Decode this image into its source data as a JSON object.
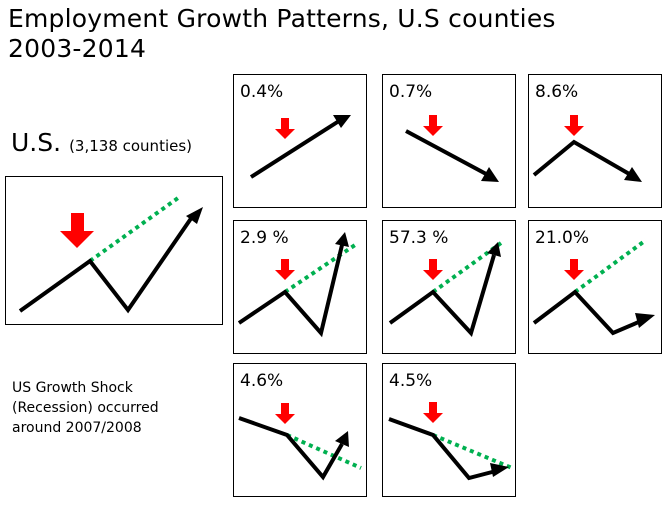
{
  "title_line1": "Employment Growth Patterns, U.S counties",
  "title_line2": "2003-2014",
  "us_label": "U.S.",
  "us_counties": "(3,138 counties)",
  "note_lines": [
    "US Growth Shock",
    "(Recession) occurred",
    "around 2007/2008"
  ],
  "colors": {
    "shock_arrow": "#ff0000",
    "trend_line": "#00b050",
    "growth_line": "#000000"
  },
  "patterns": [
    {
      "percent": "0.4%"
    },
    {
      "percent": "0.7%"
    },
    {
      "percent": "8.6%"
    },
    {
      "percent": "2.9 %"
    },
    {
      "percent": "57.3 %"
    },
    {
      "percent": "21.0%"
    },
    {
      "percent": "4.6%"
    },
    {
      "percent": "4.5%"
    }
  ]
}
